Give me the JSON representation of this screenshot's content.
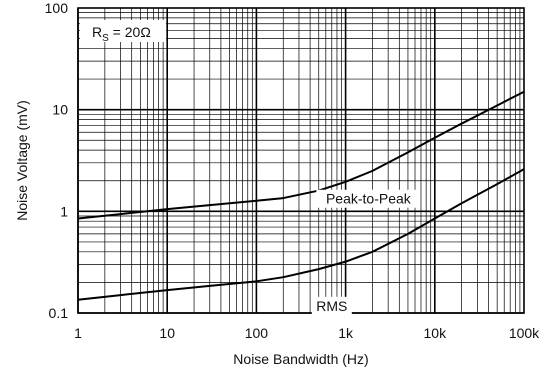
{
  "chart_data": {
    "type": "line",
    "title": "",
    "xlabel": "Noise Bandwidth (Hz)",
    "ylabel": "Noise Voltage  (mV)",
    "x_scale": "log",
    "y_scale": "log",
    "xlim": [
      1,
      100000
    ],
    "ylim": [
      0.1,
      100
    ],
    "grid": true,
    "x_ticks": [
      {
        "value": 1,
        "label": "1"
      },
      {
        "value": 10,
        "label": "10"
      },
      {
        "value": 100,
        "label": "100"
      },
      {
        "value": 1000,
        "label": "1k"
      },
      {
        "value": 10000,
        "label": "10k"
      },
      {
        "value": 100000,
        "label": "100k"
      }
    ],
    "y_ticks": [
      {
        "value": 0.1,
        "label": "0.1"
      },
      {
        "value": 1,
        "label": "1"
      },
      {
        "value": 10,
        "label": "10"
      },
      {
        "value": 100,
        "label": "100"
      }
    ],
    "annotation": {
      "prefix": "R",
      "subscript": "S",
      "suffix": " = 20Ω"
    },
    "series": [
      {
        "name": "Peak-to-Peak",
        "x": [
          1,
          3,
          10,
          30,
          100,
          200,
          500,
          1000,
          2000,
          5000,
          10000,
          20000,
          50000,
          100000
        ],
        "y": [
          0.85,
          0.94,
          1.05,
          1.15,
          1.27,
          1.35,
          1.6,
          1.95,
          2.5,
          3.8,
          5.3,
          7.3,
          11.0,
          15.0
        ]
      },
      {
        "name": "RMS",
        "x": [
          1,
          3,
          10,
          30,
          100,
          200,
          500,
          1000,
          2000,
          5000,
          10000,
          20000,
          50000,
          100000
        ],
        "y": [
          0.135,
          0.15,
          0.168,
          0.185,
          0.205,
          0.225,
          0.27,
          0.32,
          0.4,
          0.6,
          0.85,
          1.2,
          1.85,
          2.6
        ]
      }
    ],
    "colors": {
      "line": "#000000",
      "grid": "#000000",
      "background": "#ffffff"
    }
  }
}
